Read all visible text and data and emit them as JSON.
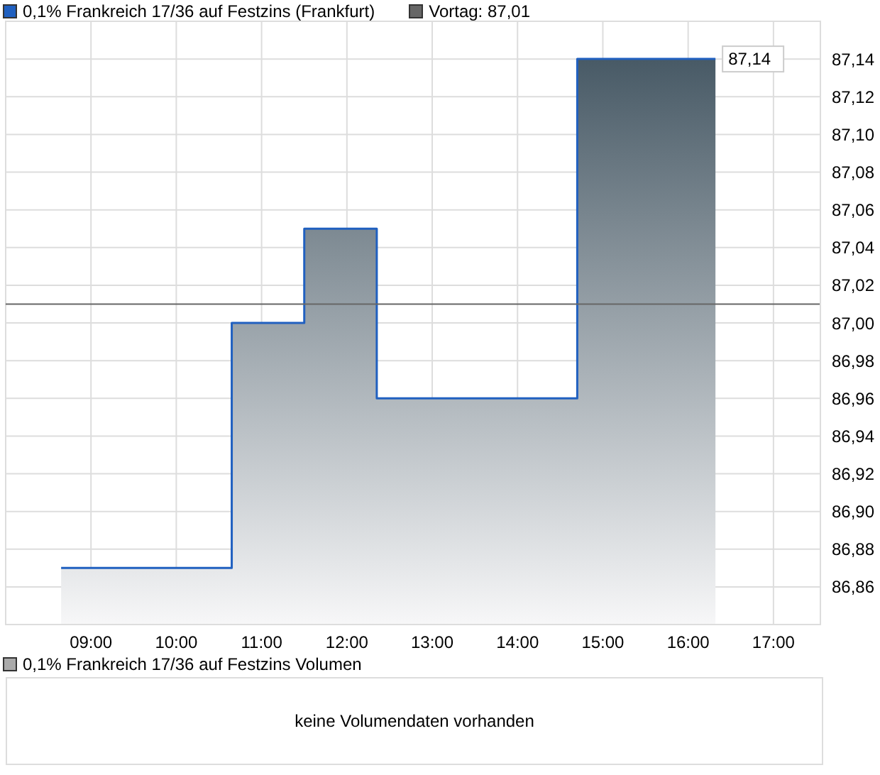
{
  "chart_data": [
    {
      "type": "area",
      "title": null,
      "x": [
        8.65,
        10.65,
        10.65,
        11.5,
        11.5,
        12.35,
        12.35,
        14.7,
        14.7,
        16.32
      ],
      "series": [
        {
          "name": "0,1% Frankreich 17/36 auf Festzins (Frankfurt)",
          "color": "#2060c0",
          "values": [
            86.87,
            86.87,
            87.0,
            87.0,
            87.05,
            87.05,
            86.96,
            86.96,
            87.14,
            87.14
          ]
        }
      ],
      "xlim": [
        8.0,
        17.55
      ],
      "ylim": [
        86.84,
        87.16
      ],
      "xticks": [
        {
          "value": 9,
          "label": "09:00"
        },
        {
          "value": 10,
          "label": "10:00"
        },
        {
          "value": 11,
          "label": "11:00"
        },
        {
          "value": 12,
          "label": "12:00"
        },
        {
          "value": 13,
          "label": "13:00"
        },
        {
          "value": 14,
          "label": "14:00"
        },
        {
          "value": 15,
          "label": "15:00"
        },
        {
          "value": 16,
          "label": "16:00"
        },
        {
          "value": 17,
          "label": "17:00"
        }
      ],
      "yticks": [
        {
          "value": 86.86,
          "label": "86,86"
        },
        {
          "value": 86.88,
          "label": "86,88"
        },
        {
          "value": 86.9,
          "label": "86,90"
        },
        {
          "value": 86.92,
          "label": "86,92"
        },
        {
          "value": 86.94,
          "label": "86,94"
        },
        {
          "value": 86.96,
          "label": "86,96"
        },
        {
          "value": 86.98,
          "label": "86,98"
        },
        {
          "value": 87.0,
          "label": "87,00"
        },
        {
          "value": 87.02,
          "label": "87,02"
        },
        {
          "value": 87.04,
          "label": "87,04"
        },
        {
          "value": 87.06,
          "label": "87,06"
        },
        {
          "value": 87.08,
          "label": "87,08"
        },
        {
          "value": 87.1,
          "label": "87,10"
        },
        {
          "value": 87.12,
          "label": "87,12"
        },
        {
          "value": 87.14,
          "label": "87,14"
        }
      ],
      "ref_lines": [
        {
          "axis": "y",
          "value": 87.01,
          "label": "Vortag: 87,01",
          "color": "#666666"
        }
      ],
      "annotations": [
        {
          "text": "87,14",
          "x": 16.32,
          "y": 87.14
        }
      ],
      "grid": true,
      "legend": "top left"
    },
    {
      "type": "other",
      "title": "0,1% Frankreich 17/36 auf Festzins Volumen",
      "annotations": [
        "keine Volumendaten vorhanden"
      ]
    }
  ]
}
